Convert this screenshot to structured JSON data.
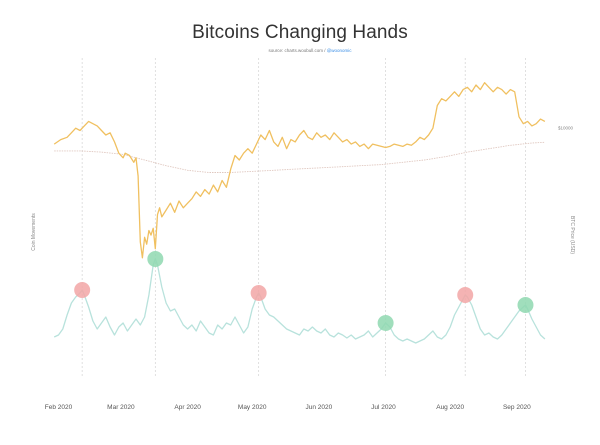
{
  "chart_data": {
    "type": "line",
    "title": "Bitcoins Changing Hands",
    "source_prefix": "source: charts.woobull.com / ",
    "source_handle": "@woonomic",
    "left_axis_label": "Coin Movements",
    "right_axis_label": "BTC Price (USD)",
    "price_tick_label": "$10000",
    "x_ticks": [
      "Feb 2020",
      "Mar 2020",
      "Apr 2020",
      "May 2020",
      "Jun 2020",
      "Jul 2020",
      "Aug 2020",
      "Sep 2020"
    ],
    "x_tick_days": [
      0,
      29,
      60,
      90,
      121,
      151,
      182,
      213
    ],
    "vertical_marker_days": [
      11,
      45,
      93,
      152,
      189,
      217
    ],
    "price_ylim": [
      3500,
      13000
    ],
    "series": [
      {
        "key": "price",
        "color": "#f0c060",
        "points": [
          [
            -2,
            9300
          ],
          [
            1,
            9500
          ],
          [
            4,
            9600
          ],
          [
            6,
            9800
          ],
          [
            8,
            10000
          ],
          [
            10,
            9900
          ],
          [
            12,
            10100
          ],
          [
            14,
            10300
          ],
          [
            16,
            10200
          ],
          [
            18,
            10100
          ],
          [
            20,
            9900
          ],
          [
            22,
            9700
          ],
          [
            24,
            9800
          ],
          [
            26,
            9400
          ],
          [
            28,
            8900
          ],
          [
            30,
            8700
          ],
          [
            31,
            8900
          ],
          [
            33,
            8800
          ],
          [
            35,
            8500
          ],
          [
            36,
            8700
          ],
          [
            37,
            7900
          ],
          [
            38,
            5000
          ],
          [
            39,
            4300
          ],
          [
            40,
            5200
          ],
          [
            41,
            4900
          ],
          [
            42,
            5500
          ],
          [
            43,
            5300
          ],
          [
            44,
            5600
          ],
          [
            45,
            4700
          ],
          [
            46,
            6200
          ],
          [
            47,
            6500
          ],
          [
            48,
            6100
          ],
          [
            50,
            6400
          ],
          [
            52,
            6700
          ],
          [
            54,
            6300
          ],
          [
            56,
            6800
          ],
          [
            58,
            6500
          ],
          [
            60,
            6700
          ],
          [
            62,
            6900
          ],
          [
            64,
            7200
          ],
          [
            66,
            7000
          ],
          [
            68,
            7300
          ],
          [
            70,
            7100
          ],
          [
            72,
            7500
          ],
          [
            74,
            7200
          ],
          [
            76,
            7700
          ],
          [
            78,
            7400
          ],
          [
            80,
            8200
          ],
          [
            82,
            8800
          ],
          [
            84,
            8600
          ],
          [
            86,
            8900
          ],
          [
            88,
            9100
          ],
          [
            90,
            8900
          ],
          [
            92,
            9300
          ],
          [
            94,
            9700
          ],
          [
            96,
            9500
          ],
          [
            98,
            9900
          ],
          [
            100,
            9400
          ],
          [
            102,
            9200
          ],
          [
            104,
            9600
          ],
          [
            106,
            9100
          ],
          [
            108,
            9500
          ],
          [
            110,
            9400
          ],
          [
            112,
            9700
          ],
          [
            114,
            9900
          ],
          [
            116,
            9600
          ],
          [
            118,
            9500
          ],
          [
            120,
            9800
          ],
          [
            122,
            9600
          ],
          [
            124,
            9700
          ],
          [
            126,
            9500
          ],
          [
            128,
            9800
          ],
          [
            130,
            9600
          ],
          [
            132,
            9400
          ],
          [
            134,
            9500
          ],
          [
            136,
            9300
          ],
          [
            138,
            9400
          ],
          [
            140,
            9200
          ],
          [
            142,
            9300
          ],
          [
            144,
            9100
          ],
          [
            146,
            9300
          ],
          [
            148,
            9250
          ],
          [
            150,
            9200
          ],
          [
            152,
            9150
          ],
          [
            154,
            9200
          ],
          [
            156,
            9300
          ],
          [
            158,
            9250
          ],
          [
            160,
            9200
          ],
          [
            162,
            9300
          ],
          [
            164,
            9250
          ],
          [
            166,
            9400
          ],
          [
            168,
            9600
          ],
          [
            170,
            9500
          ],
          [
            172,
            9700
          ],
          [
            174,
            10000
          ],
          [
            176,
            11000
          ],
          [
            178,
            11300
          ],
          [
            180,
            11200
          ],
          [
            182,
            11400
          ],
          [
            184,
            11600
          ],
          [
            186,
            11400
          ],
          [
            188,
            11700
          ],
          [
            190,
            11800
          ],
          [
            192,
            11600
          ],
          [
            194,
            11900
          ],
          [
            196,
            11700
          ],
          [
            198,
            12000
          ],
          [
            200,
            11800
          ],
          [
            202,
            11600
          ],
          [
            204,
            11800
          ],
          [
            206,
            11700
          ],
          [
            208,
            11500
          ],
          [
            210,
            11700
          ],
          [
            212,
            11600
          ],
          [
            214,
            10500
          ],
          [
            216,
            10200
          ],
          [
            218,
            10300
          ],
          [
            220,
            10100
          ],
          [
            222,
            10200
          ],
          [
            224,
            10400
          ],
          [
            226,
            10300
          ]
        ]
      },
      {
        "key": "moving_average",
        "color": "#e0c8c0",
        "points": [
          [
            -2,
            9000
          ],
          [
            10,
            9000
          ],
          [
            20,
            8950
          ],
          [
            30,
            8850
          ],
          [
            40,
            8600
          ],
          [
            50,
            8350
          ],
          [
            60,
            8150
          ],
          [
            70,
            8050
          ],
          [
            80,
            8050
          ],
          [
            90,
            8100
          ],
          [
            100,
            8150
          ],
          [
            110,
            8200
          ],
          [
            120,
            8250
          ],
          [
            130,
            8300
          ],
          [
            140,
            8350
          ],
          [
            150,
            8400
          ],
          [
            160,
            8500
          ],
          [
            170,
            8600
          ],
          [
            180,
            8750
          ],
          [
            190,
            8950
          ],
          [
            200,
            9100
          ],
          [
            210,
            9250
          ],
          [
            220,
            9350
          ],
          [
            226,
            9380
          ]
        ]
      },
      {
        "key": "coin_movements",
        "color": "#b8e2dc",
        "points": [
          [
            -2,
            28
          ],
          [
            0,
            30
          ],
          [
            2,
            36
          ],
          [
            4,
            50
          ],
          [
            6,
            62
          ],
          [
            8,
            68
          ],
          [
            10,
            72
          ],
          [
            11,
            75
          ],
          [
            12,
            70
          ],
          [
            14,
            58
          ],
          [
            16,
            44
          ],
          [
            18,
            36
          ],
          [
            20,
            42
          ],
          [
            22,
            48
          ],
          [
            24,
            38
          ],
          [
            26,
            30
          ],
          [
            28,
            38
          ],
          [
            30,
            42
          ],
          [
            32,
            34
          ],
          [
            34,
            40
          ],
          [
            36,
            46
          ],
          [
            38,
            40
          ],
          [
            40,
            48
          ],
          [
            42,
            70
          ],
          [
            44,
            100
          ],
          [
            45,
            106
          ],
          [
            46,
            100
          ],
          [
            48,
            78
          ],
          [
            50,
            62
          ],
          [
            52,
            54
          ],
          [
            54,
            56
          ],
          [
            56,
            48
          ],
          [
            58,
            40
          ],
          [
            60,
            36
          ],
          [
            62,
            40
          ],
          [
            64,
            34
          ],
          [
            66,
            44
          ],
          [
            68,
            38
          ],
          [
            70,
            32
          ],
          [
            72,
            30
          ],
          [
            74,
            40
          ],
          [
            76,
            36
          ],
          [
            78,
            42
          ],
          [
            80,
            40
          ],
          [
            82,
            48
          ],
          [
            84,
            40
          ],
          [
            86,
            32
          ],
          [
            88,
            38
          ],
          [
            90,
            56
          ],
          [
            92,
            68
          ],
          [
            93,
            72
          ],
          [
            94,
            68
          ],
          [
            96,
            56
          ],
          [
            98,
            50
          ],
          [
            100,
            48
          ],
          [
            102,
            44
          ],
          [
            104,
            40
          ],
          [
            106,
            36
          ],
          [
            108,
            34
          ],
          [
            110,
            32
          ],
          [
            112,
            30
          ],
          [
            114,
            36
          ],
          [
            116,
            34
          ],
          [
            118,
            38
          ],
          [
            120,
            34
          ],
          [
            122,
            32
          ],
          [
            124,
            36
          ],
          [
            126,
            30
          ],
          [
            128,
            28
          ],
          [
            130,
            32
          ],
          [
            132,
            30
          ],
          [
            134,
            27
          ],
          [
            136,
            30
          ],
          [
            138,
            26
          ],
          [
            140,
            28
          ],
          [
            142,
            30
          ],
          [
            144,
            34
          ],
          [
            146,
            28
          ],
          [
            148,
            32
          ],
          [
            150,
            36
          ],
          [
            152,
            42
          ],
          [
            154,
            38
          ],
          [
            156,
            30
          ],
          [
            158,
            26
          ],
          [
            160,
            24
          ],
          [
            162,
            26
          ],
          [
            164,
            24
          ],
          [
            166,
            22
          ],
          [
            168,
            24
          ],
          [
            170,
            26
          ],
          [
            172,
            30
          ],
          [
            174,
            34
          ],
          [
            176,
            28
          ],
          [
            178,
            26
          ],
          [
            180,
            30
          ],
          [
            182,
            38
          ],
          [
            184,
            50
          ],
          [
            186,
            58
          ],
          [
            188,
            66
          ],
          [
            189,
            70
          ],
          [
            190,
            68
          ],
          [
            192,
            60
          ],
          [
            194,
            48
          ],
          [
            196,
            36
          ],
          [
            198,
            30
          ],
          [
            200,
            32
          ],
          [
            202,
            28
          ],
          [
            204,
            26
          ],
          [
            206,
            30
          ],
          [
            208,
            36
          ],
          [
            210,
            42
          ],
          [
            212,
            48
          ],
          [
            214,
            54
          ],
          [
            216,
            58
          ],
          [
            217,
            60
          ],
          [
            218,
            56
          ],
          [
            220,
            46
          ],
          [
            222,
            38
          ],
          [
            224,
            30
          ],
          [
            226,
            26
          ]
        ]
      }
    ],
    "markers": [
      {
        "day": 11,
        "value": 75,
        "color": "#f2a6a6"
      },
      {
        "day": 45,
        "value": 106,
        "color": "#8fd8b0"
      },
      {
        "day": 93,
        "value": 72,
        "color": "#f2a6a6"
      },
      {
        "day": 152,
        "value": 42,
        "color": "#8fd8b0"
      },
      {
        "day": 189,
        "value": 70,
        "color": "#f2a6a6"
      },
      {
        "day": 217,
        "value": 60,
        "color": "#8fd8b0"
      }
    ],
    "grid": false,
    "legend": "none"
  }
}
